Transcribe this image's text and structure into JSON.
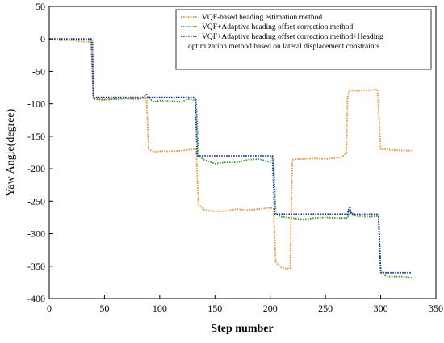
{
  "chart_data": {
    "type": "line",
    "title": "",
    "xlabel": "Step number",
    "ylabel": "Yaw Angle(degree)",
    "xlim": [
      0,
      350
    ],
    "ylim": [
      -400,
      50
    ],
    "xticks": [
      0,
      50,
      100,
      150,
      200,
      250,
      300,
      350
    ],
    "yticks": [
      50,
      0,
      -50,
      -100,
      -150,
      -200,
      -250,
      -300,
      -350,
      -400
    ],
    "xtick_labels": [
      "0",
      "50",
      "100",
      "150",
      "200",
      "250",
      "300",
      "350"
    ],
    "ytick_labels": [
      "50",
      "0",
      "-50",
      "-100",
      "-150",
      "-200",
      "-250",
      "-300",
      "-350",
      "-400"
    ],
    "grid": false,
    "legend_position": "top-right",
    "series": [
      {
        "legend": [
          "VQF-based heading estimation method"
        ],
        "color": "#f28e2b",
        "x": [
          0,
          10,
          20,
          30,
          38,
          40,
          50,
          60,
          70,
          80,
          88,
          90,
          95,
          100,
          110,
          120,
          130,
          133,
          135,
          140,
          150,
          160,
          170,
          180,
          190,
          200,
          203,
          205,
          210,
          215,
          218,
          220,
          225,
          230,
          240,
          250,
          260,
          265,
          269,
          270,
          272,
          275,
          280,
          285,
          290,
          297,
          300,
          305,
          310,
          320,
          328
        ],
        "y": [
          -1,
          -2,
          -2,
          -4,
          -5,
          -91,
          -93,
          -92,
          -92,
          -92,
          -92,
          -170,
          -174,
          -173,
          -173,
          -172,
          -170,
          -170,
          -255,
          -263,
          -266,
          -265,
          -262,
          -264,
          -262,
          -260,
          -262,
          -344,
          -352,
          -354,
          -353,
          -186,
          -185,
          -185,
          -184,
          -185,
          -183,
          -182,
          -175,
          -90,
          -78,
          -80,
          -80,
          -79,
          -79,
          -78,
          -170,
          -170,
          -171,
          -172,
          -172
        ]
      },
      {
        "legend": [
          "VQF+Adaptive heading offset correction method"
        ],
        "color": "#2ca02c",
        "x": [
          0,
          10,
          20,
          30,
          38,
          40,
          50,
          60,
          70,
          80,
          85,
          88,
          90,
          95,
          100,
          110,
          120,
          125,
          133,
          135,
          140,
          150,
          160,
          170,
          180,
          190,
          200,
          203,
          205,
          210,
          220,
          230,
          240,
          250,
          260,
          270,
          272,
          275,
          280,
          290,
          298,
          300,
          305,
          310,
          320,
          328
        ],
        "y": [
          0,
          0,
          -1,
          -1,
          -2,
          -93,
          -94,
          -93,
          -92,
          -93,
          -90,
          -86,
          -92,
          -97,
          -95,
          -96,
          -97,
          -93,
          -94,
          -180,
          -186,
          -192,
          -190,
          -190,
          -186,
          -185,
          -190,
          -186,
          -270,
          -274,
          -276,
          -278,
          -276,
          -275,
          -276,
          -276,
          -264,
          -272,
          -273,
          -274,
          -273,
          -358,
          -366,
          -366,
          -366,
          -368
        ]
      },
      {
        "legend": [
          "VQF+Adaptive heading offset correction method+Heading",
          "optimization method based on lateral displacement constraints"
        ],
        "color": "#2222cc",
        "x": [
          0,
          10,
          20,
          30,
          39,
          40,
          50,
          60,
          70,
          80,
          90,
          100,
          110,
          120,
          130,
          132,
          134,
          140,
          150,
          160,
          170,
          180,
          190,
          200,
          202,
          204,
          210,
          220,
          230,
          240,
          250,
          260,
          270,
          271,
          272,
          273,
          275,
          280,
          290,
          298,
          300,
          305,
          310,
          320,
          328
        ],
        "y": [
          0,
          0,
          0,
          0,
          0,
          -90,
          -90,
          -90,
          -90,
          -90,
          -90,
          -90,
          -90,
          -90,
          -90,
          -90,
          -180,
          -180,
          -180,
          -180,
          -180,
          -180,
          -180,
          -180,
          -180,
          -270,
          -270,
          -270,
          -270,
          -270,
          -270,
          -270,
          -270,
          -262,
          -258,
          -268,
          -270,
          -270,
          -270,
          -270,
          -360,
          -360,
          -360,
          -360,
          -360
        ]
      }
    ]
  }
}
